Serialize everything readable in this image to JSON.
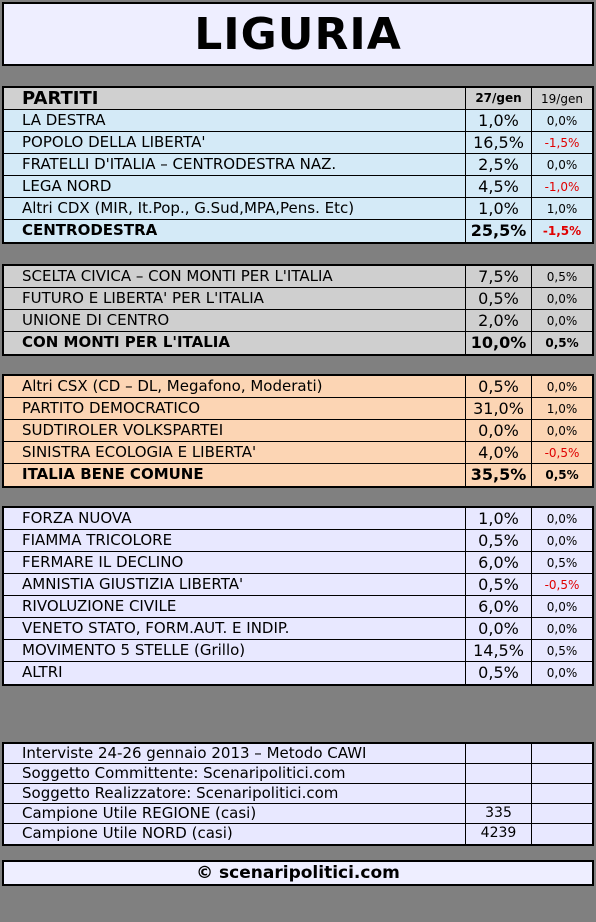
{
  "header": {
    "title": "LIGURIA"
  },
  "table": {
    "columns": [
      "PARTITI",
      "27/gen",
      "19/gen"
    ],
    "header_color": "#d0d0d0",
    "sections": [
      {
        "color": "#d4eaf7",
        "rows": [
          [
            "LA DESTRA",
            "1,0%",
            "0,0%"
          ],
          [
            "POPOLO DELLA LIBERTA'",
            "16,5%",
            "-1,5%"
          ],
          [
            "FRATELLI D'ITALIA – CENTRODESTRA NAZ.",
            "2,5%",
            "0,0%"
          ],
          [
            "LEGA NORD",
            "4,5%",
            "-1,0%"
          ],
          [
            "Altri CDX (MIR, It.Pop., G.Sud,MPA,Pens. Etc)",
            "1,0%",
            "1,0%"
          ]
        ],
        "total": [
          "CENTRODESTRA",
          "25,5%",
          "-1,5%"
        ]
      },
      {
        "color": "#cfcfcf",
        "rows": [
          [
            "SCELTA CIVICA – CON MONTI PER L'ITALIA",
            "7,5%",
            "0,5%"
          ],
          [
            "FUTURO E LIBERTA' PER L'ITALIA",
            "0,5%",
            "0,0%"
          ],
          [
            "UNIONE DI CENTRO",
            "2,0%",
            "0,0%"
          ]
        ],
        "total": [
          "CON MONTI PER L'ITALIA",
          "10,0%",
          "0,5%"
        ]
      },
      {
        "color": "#fcd5b4",
        "rows": [
          [
            "Altri CSX (CD – DL, Megafono, Moderati)",
            "0,5%",
            "0,0%"
          ],
          [
            "PARTITO DEMOCRATICO",
            "31,0%",
            "1,0%"
          ],
          [
            "SUDTIROLER VOLKSPARTEI",
            "0,0%",
            "0,0%"
          ],
          [
            "SINISTRA ECOLOGIA E LIBERTA'",
            "4,0%",
            "-0,5%"
          ]
        ],
        "total": [
          "ITALIA BENE COMUNE",
          "35,5%",
          "0,5%"
        ]
      },
      {
        "color": "#e8e8ff",
        "rows": [
          [
            "FORZA NUOVA",
            "1,0%",
            "0,0%"
          ],
          [
            "FIAMMA TRICOLORE",
            "0,5%",
            "0,0%"
          ],
          [
            "FERMARE IL DECLINO",
            "6,0%",
            "0,5%"
          ],
          [
            "AMNISTIA GIUSTIZIA LIBERTA'",
            "0,5%",
            "-0,5%"
          ],
          [
            "RIVOLUZIONE CIVILE",
            "6,0%",
            "0,0%"
          ],
          [
            "VENETO STATO, FORM.AUT. E INDIP.",
            "0,0%",
            "0,0%"
          ],
          [
            "MOVIMENTO 5 STELLE (Grillo)",
            "14,5%",
            "0,5%"
          ],
          [
            "ALTRI",
            "0,5%",
            "0,0%"
          ]
        ]
      }
    ]
  },
  "info": {
    "color": "#e8e8ff",
    "rows": [
      [
        "Interviste 24-26 gennaio 2013 – Metodo CAWI"
      ],
      [
        "Soggetto Committente: Scenaripolitici.com"
      ],
      [
        "Soggetto Realizzatore: Scenaripolitici.com"
      ],
      [
        "Campione Utile REGIONE (casi)",
        "335"
      ],
      [
        "Campione Utile NORD (casi)",
        "4239"
      ]
    ]
  },
  "footer": "© scenaripolitici.com"
}
